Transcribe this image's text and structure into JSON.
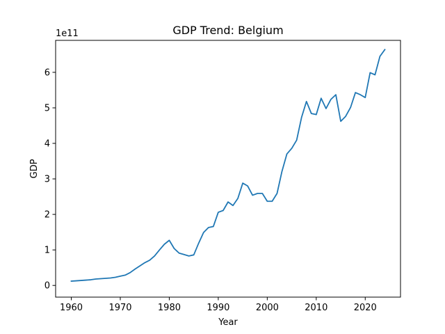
{
  "chart_data": {
    "type": "line",
    "title": "GDP Trend: Belgium",
    "xlabel": "Year",
    "ylabel": "GDP",
    "offset_text": "1e11",
    "y_scale_factor": 100000000000,
    "xlim": [
      1956.8,
      2027.2
    ],
    "ylim": [
      -3.29,
      69.0
    ],
    "x_ticks": [
      1960,
      1970,
      1980,
      1990,
      2000,
      2010,
      2020
    ],
    "x_tick_labels": [
      "1960",
      "1970",
      "1980",
      "1990",
      "2000",
      "2010",
      "2020"
    ],
    "y_ticks": [
      0,
      10,
      20,
      30,
      40,
      50,
      60
    ],
    "y_tick_labels": [
      "0",
      "1",
      "2",
      "3",
      "4",
      "5",
      "6"
    ],
    "grid": false,
    "legend": "none",
    "series": [
      {
        "color": "#1f77b4",
        "x": [
          1960,
          1961,
          1962,
          1963,
          1964,
          1965,
          1966,
          1967,
          1968,
          1969,
          1970,
          1971,
          1972,
          1973,
          1974,
          1975,
          1976,
          1977,
          1978,
          1979,
          1980,
          1981,
          1982,
          1983,
          1984,
          1985,
          1986,
          1987,
          1988,
          1989,
          1990,
          1991,
          1992,
          1993,
          1994,
          1995,
          1996,
          1997,
          1998,
          1999,
          2000,
          2001,
          2002,
          2003,
          2004,
          2005,
          2006,
          2007,
          2008,
          2009,
          2010,
          2011,
          2012,
          2013,
          2014,
          2015,
          2016,
          2017,
          2018,
          2019,
          2020,
          2021,
          2022,
          2023,
          2024
        ],
        "y": [
          1.2,
          1.3,
          1.4,
          1.5,
          1.6,
          1.8,
          1.9,
          2.0,
          2.1,
          2.3,
          2.6,
          2.9,
          3.6,
          4.6,
          5.5,
          6.4,
          7.1,
          8.3,
          10.0,
          11.6,
          12.7,
          10.4,
          9.1,
          8.7,
          8.3,
          8.6,
          11.9,
          14.9,
          16.3,
          16.6,
          20.6,
          21.1,
          23.5,
          22.5,
          24.5,
          28.8,
          28.0,
          25.4,
          25.9,
          25.9,
          23.7,
          23.7,
          25.9,
          32.1,
          37.0,
          38.6,
          40.9,
          47.3,
          51.8,
          48.4,
          48.1,
          52.7,
          49.8,
          52.4,
          53.7,
          46.2,
          47.6,
          50.1,
          54.3,
          53.7,
          52.9,
          59.9,
          59.3,
          64.5,
          66.4
        ]
      }
    ]
  }
}
